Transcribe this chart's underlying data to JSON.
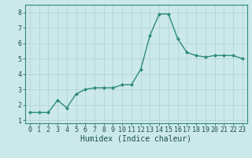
{
  "x": [
    0,
    1,
    2,
    3,
    4,
    5,
    6,
    7,
    8,
    9,
    10,
    11,
    12,
    13,
    14,
    15,
    16,
    17,
    18,
    19,
    20,
    21,
    22,
    23
  ],
  "y": [
    1.5,
    1.5,
    1.5,
    2.3,
    1.8,
    2.7,
    3.0,
    3.1,
    3.1,
    3.1,
    3.3,
    3.3,
    4.3,
    6.5,
    7.9,
    7.9,
    6.3,
    5.4,
    5.2,
    5.1,
    5.2,
    5.2,
    5.2,
    5.0
  ],
  "line_color": "#2e8b7a",
  "marker": "D",
  "marker_size": 2,
  "bg_color": "#cce9e9",
  "grid_color": "#b0d0d0",
  "xlabel": "Humidex (Indice chaleur)",
  "ylim": [
    0.8,
    8.5
  ],
  "xlim": [
    -0.5,
    23.5
  ],
  "yticks": [
    1,
    2,
    3,
    4,
    5,
    6,
    7,
    8
  ],
  "xticks": [
    0,
    1,
    2,
    3,
    4,
    5,
    6,
    7,
    8,
    9,
    10,
    11,
    12,
    13,
    14,
    15,
    16,
    17,
    18,
    19,
    20,
    21,
    22,
    23
  ],
  "xlabel_fontsize": 7,
  "tick_fontsize": 6,
  "line_width": 1.0
}
